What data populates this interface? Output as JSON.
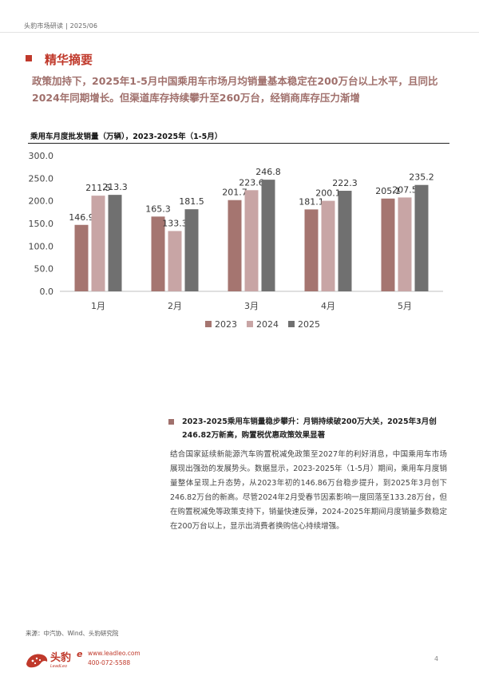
{
  "header": {
    "text": "头豹市场研读 | 2025/06"
  },
  "section": {
    "title": "精华摘要"
  },
  "summary": "政策加持下，2025年1-5月中国乘用车市场月均销量基本稳定在200万台以上水平，且同比2024年同期增长。但渠道库存持续攀升至260万台，经销商库存压力渐增",
  "chart_title": "乘用车月度批发销量（万辆），2023-2025年（1-5月）",
  "chart_data": {
    "type": "bar",
    "title": "乘用车月度批发销量（万辆），2023-2025年（1-5月）",
    "categories": [
      "1月",
      "2月",
      "3月",
      "4月",
      "5月"
    ],
    "series": [
      {
        "name": "2023",
        "values": [
          146.9,
          165.3,
          201.7,
          181.1,
          205.1
        ],
        "labels": [
          "146.9",
          "165.3",
          "201.7",
          "181.1",
          "205.1"
        ],
        "color": "#a57570"
      },
      {
        "name": "2024",
        "values": [
          211.5,
          133.3,
          223.6,
          200.1,
          207.5
        ],
        "labels": [
          "211.5",
          "133.3",
          "223.6",
          "200.1",
          "207.5"
        ],
        "color": "#c8a5a5"
      },
      {
        "name": "2025",
        "values": [
          213.3,
          181.5,
          246.8,
          222.3,
          235.2
        ],
        "labels": [
          "213.3",
          "181.5",
          "246.8",
          "222.3",
          "235.2"
        ],
        "color": "#707070"
      }
    ],
    "ylim": [
      0,
      300
    ],
    "yticks": [
      "0.0",
      "50.0",
      "100.0",
      "150.0",
      "200.0",
      "250.0",
      "300.0"
    ],
    "grid": false,
    "legend": "bottom"
  },
  "bullet_title": "2023-2025乘用车销量稳步攀升：月销持续破200万大关，2025年3月创246.82万新高，购置税优惠政策效果显著",
  "body_text": "结合国家延续新能源汽车购置税减免政策至2027年的利好消息，中国乘用车市场展现出强劲的发展势头。数据显示，2023-2025年（1-5月）期间，乘用车月度销量整体呈现上升态势，从2023年初的146.86万台稳步提升，到2025年3月创下246.82万台的新高。尽管2024年2月受春节因素影响一度回落至133.28万台，但在购置税减免等政策支持下，销量快速反弹，2024-2025年期间月度销量多数稳定在200万台以上，显示出消费者换购信心持续增强。",
  "source": "来源：中汽协、Wind、头豹研究院",
  "footer": {
    "logo_name": "头豹",
    "logo_en": "LeadLeo",
    "logo_e": "e",
    "url": "www.leadleo.com",
    "phone": "400-072-5588",
    "page": "4"
  },
  "colors": {
    "brand": "#c0392b",
    "accent": "#a0706c"
  }
}
